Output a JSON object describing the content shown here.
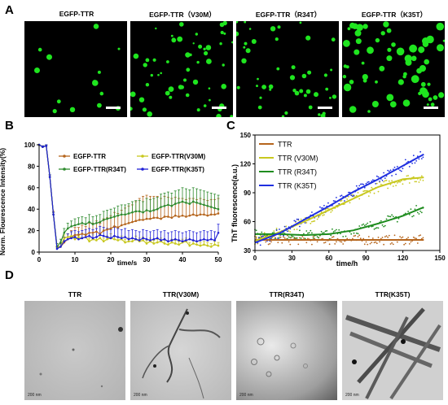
{
  "panels": {
    "A": "A",
    "B": "B",
    "C": "C",
    "D": "D"
  },
  "row_a": {
    "titles": [
      "EGFP-TTR",
      "EGFP-TTR（V30M）",
      "EGFP-TTR（R34T）",
      "EGFP-TTR（K35T）"
    ],
    "dot_color": "#1fe51f"
  },
  "chart_data": [
    {
      "type": "line",
      "panel": "B",
      "xlabel": "time/s",
      "ylabel": "Norm. Flourescence Intensity(%)",
      "xlim": [
        0,
        50
      ],
      "ylim": [
        0,
        100
      ],
      "xticks": [
        0,
        10,
        20,
        30,
        40,
        50
      ],
      "yticks": [
        0,
        20,
        40,
        60,
        80,
        100
      ],
      "legend": "top",
      "error_bars": true,
      "x": [
        0,
        1,
        2,
        3,
        4,
        5,
        6,
        7,
        8,
        9,
        10,
        11,
        12,
        13,
        14,
        15,
        16,
        17,
        18,
        19,
        20,
        21,
        22,
        23,
        24,
        25,
        26,
        27,
        28,
        29,
        30,
        31,
        32,
        33,
        34,
        35,
        36,
        37,
        38,
        39,
        40,
        41,
        42,
        43,
        44,
        45,
        46,
        47,
        48,
        49,
        50
      ],
      "series": [
        {
          "name": "EGFP-TTR",
          "color": "#b5651d",
          "values": [
            100,
            98,
            99,
            70,
            35,
            5,
            5,
            9,
            12,
            14,
            16,
            16,
            17,
            16,
            18,
            18,
            19,
            17,
            20,
            21,
            22,
            24,
            23,
            25,
            26,
            27,
            28,
            29,
            30,
            30,
            31,
            31,
            32,
            32,
            31,
            33,
            33,
            32,
            34,
            33,
            34,
            33,
            34,
            35,
            34,
            35,
            35,
            34,
            35,
            35,
            36
          ],
          "errors": [
            0,
            1,
            1,
            2,
            3,
            3,
            4,
            5,
            5,
            6,
            7,
            7,
            8,
            8,
            9,
            9,
            10,
            10,
            11,
            11,
            12,
            13,
            13,
            14,
            15,
            16,
            16,
            18,
            20,
            22,
            22,
            21,
            20,
            20,
            19,
            19,
            18,
            18,
            17,
            17,
            16,
            16,
            16,
            15,
            15,
            15,
            14,
            14,
            14,
            14,
            14
          ]
        },
        {
          "name": "EGFP-TTR(V30M)",
          "color": "#c8c81e",
          "values": [
            100,
            98,
            99,
            70,
            35,
            4,
            5,
            13,
            14,
            15,
            12,
            14,
            13,
            14,
            10,
            12,
            11,
            13,
            10,
            12,
            13,
            12,
            11,
            12,
            9,
            10,
            10,
            12,
            10,
            11,
            8,
            10,
            8,
            9,
            10,
            8,
            7,
            9,
            8,
            7,
            9,
            10,
            6,
            8,
            7,
            6,
            7,
            6,
            5,
            7,
            6
          ],
          "errors": [
            0,
            1,
            1,
            2,
            2,
            2,
            3,
            3,
            3,
            4,
            3,
            3,
            4,
            3,
            3,
            4,
            3,
            3,
            3,
            3,
            4,
            3,
            3,
            3,
            3,
            3,
            3,
            3,
            3,
            3,
            3,
            3,
            3,
            3,
            3,
            3,
            3,
            3,
            3,
            3,
            3,
            3,
            3,
            3,
            3,
            3,
            3,
            3,
            3,
            3,
            3
          ]
        },
        {
          "name": "EGFP-TTR(R34T)",
          "color": "#2e8b2e",
          "values": [
            100,
            98,
            99,
            70,
            35,
            5,
            9,
            18,
            22,
            24,
            25,
            26,
            27,
            26,
            28,
            26,
            27,
            28,
            30,
            31,
            32,
            33,
            34,
            35,
            35,
            36,
            37,
            38,
            38,
            37,
            39,
            38,
            39,
            40,
            42,
            43,
            44,
            43,
            45,
            46,
            47,
            46,
            45,
            47,
            46,
            45,
            44,
            43,
            42,
            41,
            40
          ],
          "errors": [
            0,
            1,
            1,
            2,
            2,
            3,
            3,
            4,
            5,
            5,
            6,
            6,
            6,
            6,
            7,
            7,
            7,
            7,
            8,
            8,
            8,
            8,
            9,
            9,
            9,
            9,
            10,
            10,
            10,
            10,
            11,
            11,
            11,
            11,
            12,
            12,
            12,
            12,
            12,
            12,
            13,
            13,
            13,
            13,
            13,
            13,
            13,
            13,
            13,
            13,
            13
          ]
        },
        {
          "name": "EGFP-TTR(K35T)",
          "color": "#1f1fd6",
          "values": [
            100,
            98,
            99,
            70,
            35,
            3,
            5,
            10,
            12,
            13,
            14,
            12,
            13,
            14,
            15,
            13,
            14,
            16,
            15,
            14,
            13,
            15,
            14,
            13,
            14,
            12,
            13,
            12,
            11,
            13,
            12,
            11,
            12,
            13,
            11,
            12,
            10,
            11,
            12,
            11,
            10,
            11,
            12,
            11,
            10,
            11,
            12,
            11,
            12,
            11,
            18
          ],
          "errors": [
            0,
            1,
            1,
            2,
            2,
            2,
            3,
            4,
            5,
            6,
            6,
            7,
            7,
            7,
            7,
            8,
            8,
            8,
            8,
            8,
            8,
            8,
            8,
            8,
            8,
            8,
            8,
            8,
            8,
            8,
            8,
            8,
            8,
            8,
            8,
            8,
            8,
            8,
            8,
            8,
            8,
            8,
            8,
            8,
            8,
            8,
            8,
            8,
            8,
            8,
            8
          ]
        }
      ]
    },
    {
      "type": "scatter",
      "panel": "C",
      "xlabel": "time/h",
      "ylabel": "ThT fluorescence(a.u.)",
      "xlim": [
        0,
        150
      ],
      "ylim": [
        30,
        150
      ],
      "xticks": [
        0,
        30,
        60,
        90,
        120,
        150
      ],
      "yticks": [
        30,
        60,
        90,
        120,
        150
      ],
      "legend": "top-left",
      "fit_lines": true,
      "series": [
        {
          "name": "TTR",
          "color": "#b5651d",
          "fit_x": [
            0,
            20,
            40,
            60,
            80,
            100,
            120,
            137
          ],
          "fit_y": [
            41,
            41,
            41,
            41,
            41,
            41,
            41,
            41
          ]
        },
        {
          "name": "TTR (V30M)",
          "color": "#c8c81e",
          "fit_x": [
            0,
            20,
            40,
            60,
            80,
            100,
            120,
            137
          ],
          "fit_y": [
            40,
            49,
            60,
            72,
            84,
            96,
            104,
            106
          ]
        },
        {
          "name": "TTR (R34T)",
          "color": "#1e8c1e",
          "fit_x": [
            0,
            20,
            40,
            60,
            80,
            100,
            120,
            137
          ],
          "fit_y": [
            47,
            47,
            46,
            47,
            51,
            58,
            66,
            75
          ]
        },
        {
          "name": "TTR (K35T)",
          "color": "#1f2fe0",
          "fit_x": [
            0,
            20,
            40,
            60,
            80,
            100,
            120,
            137
          ],
          "fit_y": [
            38,
            48,
            62,
            76,
            91,
            104,
            118,
            130
          ]
        }
      ]
    }
  ],
  "row_d": {
    "titles": [
      "TTR",
      "TTR(V30M)",
      "TTR(R34T)",
      "TTR(K35T)"
    ],
    "scale_label": "200 nm"
  }
}
